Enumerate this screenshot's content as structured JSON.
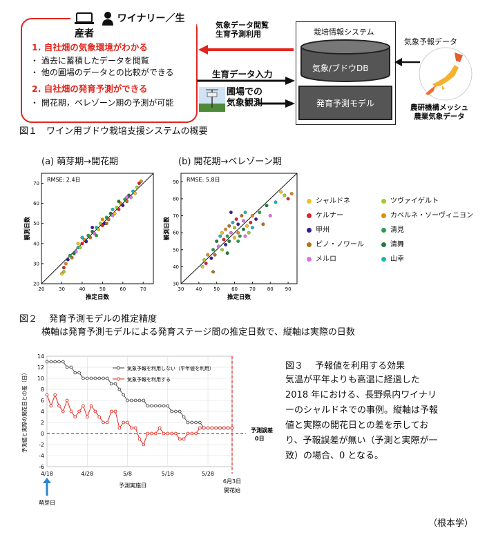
{
  "fig1": {
    "farm_title": "ワイナリー／生産者",
    "point1": "1. 自社畑の気象環境がわかる",
    "bullet1a": "・ 過去に蓄積したデータを閲覧",
    "bullet1b": "・ 他の圃場のデータとの比較ができる",
    "point2": "2. 自社畑の発育予測ができる",
    "bullet2a": "・ 開花期，ベレゾーン期の予測が可能",
    "arrow_top_label_1": "気象データ閲覧",
    "arrow_top_label_2": "生育予測利用",
    "arrow_mid_label": "生育データ入力",
    "arrow_bot_label_1": "圃場での",
    "arrow_bot_label_2": "気象観測",
    "system_title": "栽培情報システム",
    "db_label": "気象/ブドウDB",
    "model_label": "発育予測モデル",
    "forecast_label": "気象予報データ",
    "mesh_label_1": "農研機構メッシュ",
    "mesh_label_2": "農業気象データ",
    "caption": "図１　ワイン用ブドウ栽培支援システムの概要"
  },
  "fig2": {
    "panel_a_title": "(a)  萌芽期→開花期",
    "panel_b_title": "(b)  開花期→ベレゾーン期",
    "rmse_a": "RMSE: 2.4日",
    "rmse_b": "RMSE: 5.8日",
    "xlabel": "推定日数",
    "ylabel": "観測日数",
    "caption": "図２　 発育予測モデルの推定精度",
    "caption_sub": "横軸は発育予測モデルによる発育ステージ間の推定日数で、縦軸は実際の日数",
    "legend": [
      {
        "name": "シャルドネ",
        "color": "#f0c020"
      },
      {
        "name": "ツヴァイゲルト",
        "color": "#9acd32"
      },
      {
        "name": "ケルナー",
        "color": "#e0202a"
      },
      {
        "name": "カベルネ・ソーヴィニヨン",
        "color": "#e08a10"
      },
      {
        "name": "甲州",
        "color": "#3a1a9a"
      },
      {
        "name": "清見",
        "color": "#2aa04a"
      },
      {
        "name": "ピノ・ノワール",
        "color": "#b07020"
      },
      {
        "name": "清舞",
        "color": "#207a3a"
      },
      {
        "name": "メルロ",
        "color": "#e070e0"
      },
      {
        "name": "山幸",
        "color": "#20b4b8"
      }
    ]
  },
  "fig3": {
    "caption_title": "図３　 予報値を利用する効果",
    "caption_lines": [
      "気温が平年よりも高温に経過した",
      "2018 年における、長野県内ワイナリ",
      "ーのシャルドネでの事例。縦軸は予報",
      "値と実際の開花日との差を示してお",
      "り、予報誤差が無い（予測と実際が一",
      "致）の場合、0 となる。"
    ],
    "legend_gray": "気象予報を利用しない（平年値を利用）",
    "legend_red": "気象予報を利用する",
    "ylabel": "予測値と実際の開花日との差（日）",
    "xlabel": "予測実施日",
    "zero_label_1": "予測誤差",
    "zero_label_2": "0日",
    "bloom_label_1": "6月3日",
    "bloom_label_2": "開花始",
    "budbreak_label": "萌芽日"
  },
  "author": "（根本学）",
  "chart_data": [
    {
      "type": "scatter",
      "title": "(a)  萌芽期→開花期",
      "xlabel": "推定日数",
      "ylabel": "観測日数",
      "xlim": [
        20,
        75
      ],
      "ylim": [
        20,
        75
      ],
      "xticks": [
        20,
        30,
        40,
        50,
        60,
        70
      ],
      "yticks": [
        20,
        30,
        40,
        50,
        60,
        70
      ],
      "annotation": "RMSE: 2.4日",
      "points": [
        [
          30,
          25
        ],
        [
          31,
          26
        ],
        [
          31,
          28
        ],
        [
          32,
          30
        ],
        [
          33,
          32
        ],
        [
          34,
          34
        ],
        [
          35,
          33
        ],
        [
          36,
          35
        ],
        [
          37,
          36
        ],
        [
          38,
          38
        ],
        [
          38,
          40
        ],
        [
          39,
          38
        ],
        [
          40,
          40
        ],
        [
          41,
          42
        ],
        [
          42,
          41
        ],
        [
          43,
          44
        ],
        [
          44,
          43
        ],
        [
          45,
          46
        ],
        [
          46,
          45
        ],
        [
          47,
          48
        ],
        [
          48,
          47
        ],
        [
          49,
          50
        ],
        [
          50,
          49
        ],
        [
          50,
          52
        ],
        [
          51,
          50
        ],
        [
          52,
          53
        ],
        [
          53,
          52
        ],
        [
          54,
          55
        ],
        [
          55,
          54
        ],
        [
          55,
          57
        ],
        [
          56,
          55
        ],
        [
          57,
          58
        ],
        [
          58,
          57
        ],
        [
          59,
          60
        ],
        [
          60,
          59
        ],
        [
          61,
          62
        ],
        [
          62,
          61
        ],
        [
          63,
          64
        ],
        [
          64,
          63
        ],
        [
          65,
          66
        ],
        [
          66,
          65
        ],
        [
          67,
          68
        ],
        [
          68,
          70
        ],
        [
          69,
          71
        ],
        [
          45,
          48
        ],
        [
          47,
          44
        ],
        [
          52,
          50
        ],
        [
          58,
          61
        ],
        [
          62,
          63
        ],
        [
          40,
          43
        ]
      ]
    },
    {
      "type": "scatter",
      "title": "(b)  開花期→ベレゾーン期",
      "xlabel": "推定日数",
      "ylabel": "観測日数",
      "xlim": [
        30,
        95
      ],
      "ylim": [
        30,
        95
      ],
      "xticks": [
        30,
        40,
        50,
        60,
        70,
        80,
        90
      ],
      "yticks": [
        30,
        40,
        50,
        60,
        70,
        80,
        90
      ],
      "annotation": "RMSE: 5.8日",
      "points": [
        [
          42,
          40
        ],
        [
          43,
          44
        ],
        [
          44,
          42
        ],
        [
          45,
          47
        ],
        [
          47,
          45
        ],
        [
          48,
          50
        ],
        [
          49,
          47
        ],
        [
          50,
          55
        ],
        [
          51,
          52
        ],
        [
          52,
          58
        ],
        [
          53,
          60
        ],
        [
          53,
          50
        ],
        [
          54,
          56
        ],
        [
          55,
          62
        ],
        [
          55,
          53
        ],
        [
          56,
          58
        ],
        [
          57,
          64
        ],
        [
          57,
          55
        ],
        [
          58,
          60
        ],
        [
          59,
          66
        ],
        [
          60,
          57
        ],
        [
          60,
          63
        ],
        [
          61,
          68
        ],
        [
          62,
          60
        ],
        [
          62,
          65
        ],
        [
          63,
          58
        ],
        [
          64,
          70
        ],
        [
          65,
          62
        ],
        [
          65,
          67
        ],
        [
          66,
          72
        ],
        [
          67,
          64
        ],
        [
          68,
          60
        ],
        [
          69,
          66
        ],
        [
          70,
          70
        ],
        [
          72,
          68
        ],
        [
          74,
          72
        ],
        [
          76,
          65
        ],
        [
          78,
          76
        ],
        [
          80,
          70
        ],
        [
          83,
          78
        ],
        [
          86,
          84
        ],
        [
          88,
          82
        ],
        [
          90,
          80
        ],
        [
          92,
          83
        ],
        [
          58,
          72
        ],
        [
          62,
          55
        ],
        [
          48,
          37
        ],
        [
          56,
          48
        ],
        [
          66,
          58
        ],
        [
          70,
          63
        ]
      ]
    },
    {
      "type": "line",
      "xlabel": "予測実施日",
      "ylabel": "予測値と実際の開花日との差（日）",
      "ylim": [
        -6,
        14
      ],
      "yticks": [
        -6,
        -4,
        -2,
        0,
        2,
        4,
        6,
        8,
        10,
        12,
        14
      ],
      "x_tick_labels": [
        "4/18",
        "4/28",
        "5/8",
        "5/18",
        "5/28"
      ],
      "x_start": "4/18",
      "x_end": "6/3",
      "series": [
        {
          "name": "気象予報を利用しない（平年値を利用）",
          "values": [
            13,
            13,
            13,
            13,
            13,
            12,
            12,
            11,
            11,
            10,
            10,
            10,
            10,
            10,
            10,
            10,
            9,
            9,
            8,
            7,
            6,
            6,
            6,
            6,
            6,
            5,
            5,
            5,
            5,
            5,
            5,
            4,
            4,
            4,
            3,
            2,
            2,
            2,
            2,
            1,
            1,
            1,
            1,
            1,
            1,
            1,
            1
          ]
        },
        {
          "name": "気象予報を利用する",
          "values": [
            7,
            5,
            7,
            5,
            4,
            6,
            4,
            3,
            4,
            5,
            3,
            5,
            4,
            3,
            2,
            2,
            4,
            4,
            1,
            2,
            2,
            1,
            1,
            -1,
            -2,
            0,
            0,
            0,
            1,
            0,
            0,
            0,
            0,
            -1,
            -1,
            0,
            0,
            0,
            1,
            1,
            1,
            1,
            1,
            1,
            1,
            1,
            1
          ]
        }
      ],
      "annotations": [
        "予測誤差 0日",
        "6月3日 開花始",
        "萌芽日"
      ]
    }
  ]
}
